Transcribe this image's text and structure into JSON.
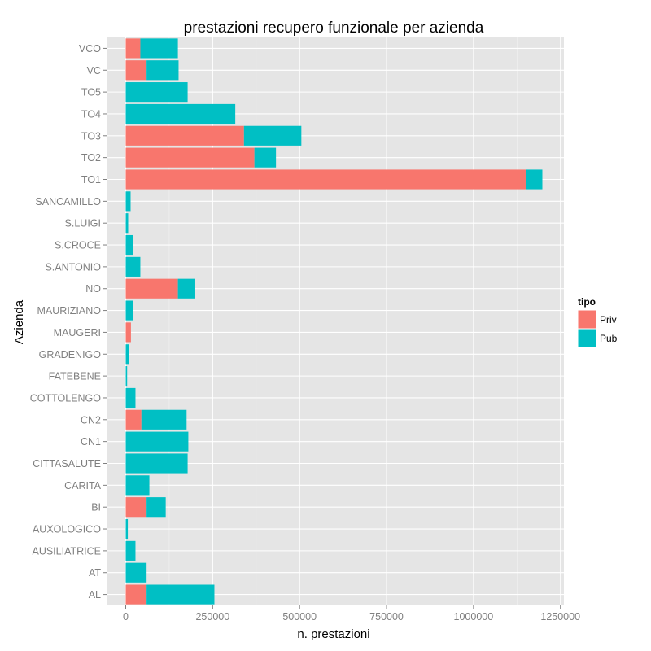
{
  "chart_data": {
    "type": "bar",
    "orientation": "horizontal",
    "stacked": true,
    "title": "prestazioni recupero funzionale per azienda",
    "xlabel": "n. prestazioni",
    "ylabel": "Azienda",
    "xlim": [
      -55000,
      1260000
    ],
    "xticks": [
      0,
      250000,
      500000,
      750000,
      1000000,
      1250000
    ],
    "xtick_labels": [
      "0",
      "250000",
      "500000",
      "750000",
      "1000000",
      "1250000"
    ],
    "grid": true,
    "legend": {
      "title": "tipo",
      "position": "right"
    },
    "categories": [
      "AL",
      "AT",
      "AUSILIATRICE",
      "AUXOLOGICO",
      "BI",
      "CARITA",
      "CITTASALUTE",
      "CN1",
      "CN2",
      "COTTOLENGO",
      "FATEBENE",
      "GRADENIGO",
      "MAUGERI",
      "MAURIZIANO",
      "NO",
      "S.ANTONIO",
      "S.CROCE",
      "S.LUIGI",
      "SANCAMILLO",
      "TO1",
      "TO2",
      "TO3",
      "TO4",
      "TO5",
      "VC",
      "VCO"
    ],
    "series": [
      {
        "name": "Priv",
        "color": "#F8766D",
        "values": [
          60000,
          0,
          0,
          0,
          60000,
          0,
          0,
          0,
          45000,
          0,
          0,
          0,
          15000,
          0,
          150000,
          0,
          0,
          0,
          0,
          1150000,
          370000,
          340000,
          0,
          0,
          60000,
          42000
        ]
      },
      {
        "name": "Pub",
        "color": "#00BFC4",
        "values": [
          195000,
          60000,
          28000,
          6000,
          55000,
          68000,
          178000,
          180000,
          130000,
          28000,
          4000,
          10000,
          0,
          22000,
          50000,
          42000,
          22000,
          7000,
          14000,
          48000,
          62000,
          165000,
          315000,
          178000,
          92000,
          108000
        ]
      }
    ]
  }
}
